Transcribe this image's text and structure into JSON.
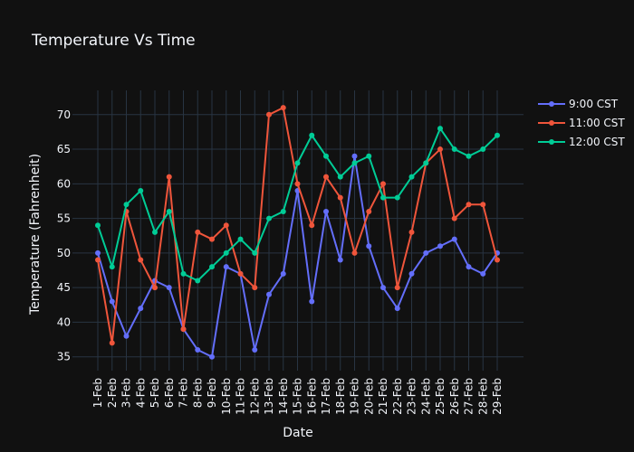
{
  "chart_data": {
    "type": "line",
    "title": "Temperature Vs Time",
    "xlabel": "Date",
    "ylabel": "Temperature (Fahrenheit)",
    "categories": [
      "1-Feb",
      "2-Feb",
      "3-Feb",
      "4-Feb",
      "5-Feb",
      "6-Feb",
      "7-Feb",
      "8-Feb",
      "9-Feb",
      "10-Feb",
      "11-Feb",
      "12-Feb",
      "13-Feb",
      "14-Feb",
      "15-Feb",
      "16-Feb",
      "17-Feb",
      "18-Feb",
      "19-Feb",
      "20-Feb",
      "21-Feb",
      "22-Feb",
      "23-Feb",
      "24-Feb",
      "25-Feb",
      "26-Feb",
      "27-Feb",
      "28-Feb",
      "29-Feb"
    ],
    "yticks": [
      35,
      40,
      45,
      50,
      55,
      60,
      65,
      70
    ],
    "ylim": [
      33,
      73.5
    ],
    "grid": true,
    "legend_position": "top-right",
    "series": [
      {
        "name": "9:00 CST",
        "color": "#636efa",
        "values": [
          50,
          43,
          38,
          42,
          46,
          45,
          39,
          36,
          35,
          48,
          47,
          36,
          44,
          47,
          59,
          43,
          56,
          49,
          64,
          51,
          45,
          42,
          47,
          50,
          51,
          52,
          48,
          47,
          50
        ]
      },
      {
        "name": "11:00 CST",
        "color": "#ef553b",
        "values": [
          49,
          37,
          56,
          49,
          45,
          61,
          39,
          53,
          52,
          54,
          47,
          45,
          70,
          71,
          60,
          54,
          61,
          58,
          50,
          56,
          60,
          45,
          53,
          63,
          65,
          55,
          57,
          57,
          49
        ]
      },
      {
        "name": "12:00 CST",
        "color": "#00cc96",
        "values": [
          54,
          48,
          57,
          59,
          53,
          56,
          47,
          46,
          48,
          50,
          52,
          50,
          55,
          56,
          63,
          67,
          64,
          61,
          63,
          64,
          58,
          58,
          61,
          63,
          68,
          65,
          64,
          65,
          67
        ]
      }
    ]
  }
}
